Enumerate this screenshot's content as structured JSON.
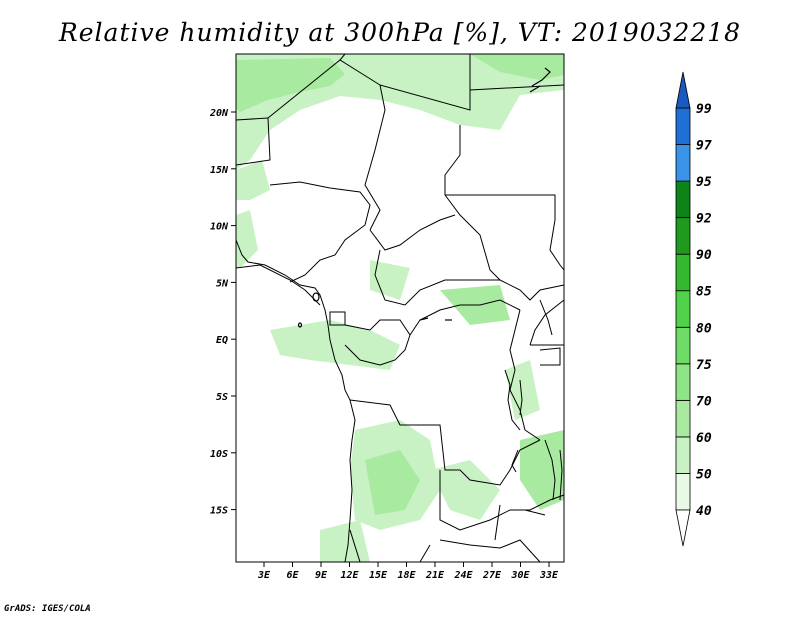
{
  "title": "Relative humidity at 300hPa [%], VT: 2019032218",
  "credit": "GrADS: IGES/COLA",
  "map": {
    "lon_labels": [
      "3E",
      "6E",
      "9E",
      "12E",
      "15E",
      "18E",
      "21E",
      "24E",
      "27E",
      "30E",
      "33E"
    ],
    "lat_labels": [
      "20N",
      "15N",
      "10N",
      "5N",
      "EQ",
      "5S",
      "10S",
      "15S"
    ],
    "field_color": "#aee8a4"
  },
  "colorbar": {
    "levels": [
      "40",
      "50",
      "60",
      "70",
      "75",
      "80",
      "85",
      "90",
      "92",
      "95",
      "97",
      "99"
    ],
    "colors": [
      "#ffffff",
      "#e8fae6",
      "#c8f2c4",
      "#a8eaa0",
      "#8ee486",
      "#6edc66",
      "#4fd24a",
      "#34b830",
      "#1f9a1e",
      "#0e8418",
      "#3a93e6",
      "#1f6fd6",
      "#1a5ac0"
    ]
  }
}
